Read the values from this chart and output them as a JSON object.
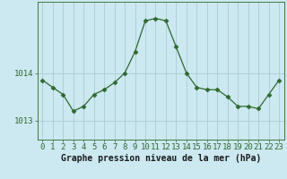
{
  "x": [
    0,
    1,
    2,
    3,
    4,
    5,
    6,
    7,
    8,
    9,
    10,
    11,
    12,
    13,
    14,
    15,
    16,
    17,
    18,
    19,
    20,
    21,
    22,
    23
  ],
  "y": [
    1013.85,
    1013.7,
    1013.55,
    1013.2,
    1013.3,
    1013.55,
    1013.65,
    1013.8,
    1014.0,
    1014.45,
    1015.1,
    1015.15,
    1015.1,
    1014.55,
    1014.0,
    1013.7,
    1013.65,
    1013.65,
    1013.5,
    1013.3,
    1013.3,
    1013.25,
    1013.55,
    1013.85
  ],
  "line_color": "#2d6a2d",
  "marker": "D",
  "marker_size": 2.5,
  "bg_color": "#cce8f0",
  "grid_color": "#aaccd6",
  "ylabel_ticks": [
    1013,
    1014
  ],
  "xlabel": "Graphe pression niveau de la mer (hPa)",
  "xlabel_fontsize": 7,
  "tick_fontsize": 6.5,
  "ylim": [
    1012.6,
    1015.5
  ],
  "xlim": [
    -0.5,
    23.5
  ]
}
